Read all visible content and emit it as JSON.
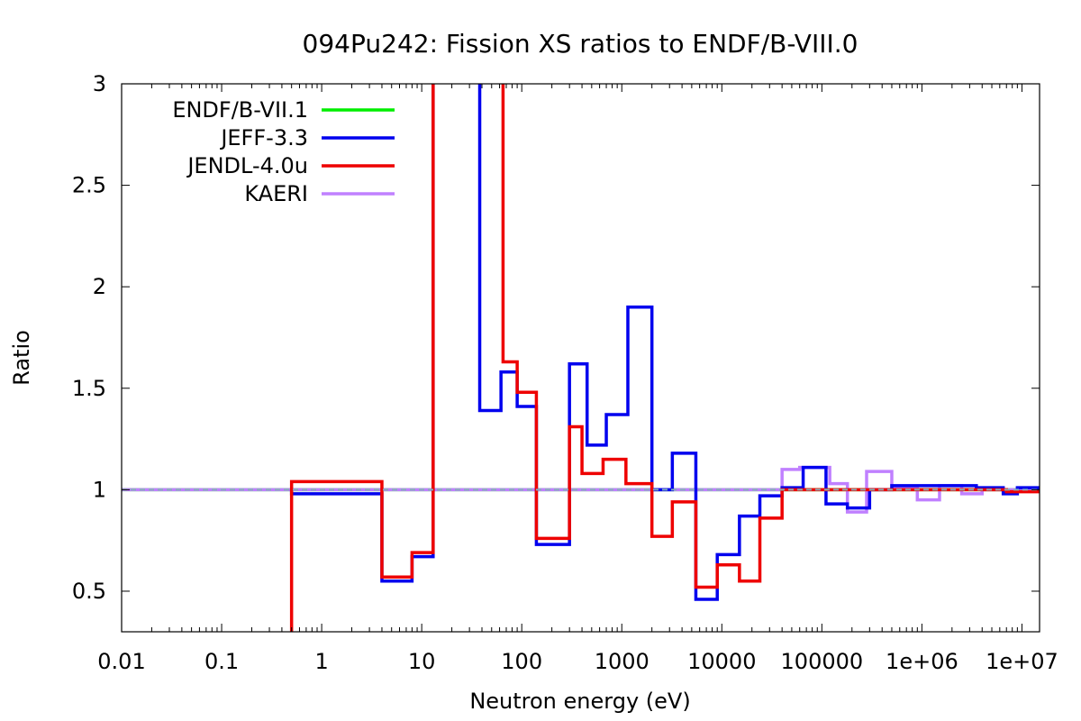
{
  "chart_data": {
    "type": "line",
    "title": "094Pu242: Fission XS ratios to ENDF/B-VIII.0",
    "xlabel": "Neutron energy (eV)",
    "ylabel": "Ratio",
    "x_scale": "log",
    "xlim": [
      0.01,
      15000000
    ],
    "ylim": [
      0.3,
      3.0
    ],
    "grid": false,
    "legend_position": "top-left",
    "x_ticks": [
      {
        "value": 0.01,
        "label": "0.01"
      },
      {
        "value": 0.1,
        "label": "0.1"
      },
      {
        "value": 1,
        "label": "1"
      },
      {
        "value": 10,
        "label": "10"
      },
      {
        "value": 100,
        "label": "100"
      },
      {
        "value": 1000,
        "label": "1000"
      },
      {
        "value": 10000,
        "label": "10000"
      },
      {
        "value": 100000,
        "label": "100000"
      },
      {
        "value": 1000000,
        "label": "1e+06"
      },
      {
        "value": 10000000,
        "label": "1e+07"
      }
    ],
    "y_ticks": [
      {
        "value": 0.5,
        "label": "0.5"
      },
      {
        "value": 1.0,
        "label": "1"
      },
      {
        "value": 1.5,
        "label": "1.5"
      },
      {
        "value": 2.0,
        "label": "2"
      },
      {
        "value": 2.5,
        "label": "2.5"
      },
      {
        "value": 3.0,
        "label": "3"
      }
    ],
    "series": [
      {
        "name": "ENDF/B-VII.1",
        "color": "#00ee00",
        "points": [
          [
            0.01,
            1.0
          ],
          [
            15000000,
            1.0
          ]
        ]
      },
      {
        "name": "KAERI",
        "color": "#c080ff",
        "points": [
          [
            0.01,
            1.0
          ],
          [
            40000,
            1.0
          ],
          [
            40000,
            1.1
          ],
          [
            60000,
            1.1
          ],
          [
            60000,
            1.11
          ],
          [
            120000,
            1.11
          ],
          [
            120000,
            1.03
          ],
          [
            180000,
            1.03
          ],
          [
            180000,
            0.89
          ],
          [
            280000,
            0.89
          ],
          [
            280000,
            1.09
          ],
          [
            500000,
            1.09
          ],
          [
            500000,
            1.01
          ],
          [
            900000,
            1.01
          ],
          [
            900000,
            0.95
          ],
          [
            1500000,
            0.95
          ],
          [
            1500000,
            1.02
          ],
          [
            2500000,
            1.02
          ],
          [
            2500000,
            0.98
          ],
          [
            4000000,
            0.98
          ],
          [
            4000000,
            1.0
          ],
          [
            15000000,
            1.0
          ]
        ]
      },
      {
        "name": "JEFF-3.3",
        "color": "#0000ee",
        "points": [
          [
            0.5,
            1.0
          ],
          [
            0.5,
            0.98
          ],
          [
            4,
            0.98
          ],
          [
            4,
            0.55
          ],
          [
            8,
            0.55
          ],
          [
            8,
            0.67
          ],
          [
            13,
            0.67
          ],
          [
            13,
            3.5
          ],
          [
            38,
            3.5
          ],
          [
            38,
            1.39
          ],
          [
            62,
            1.39
          ],
          [
            62,
            1.58
          ],
          [
            90,
            1.58
          ],
          [
            90,
            1.41
          ],
          [
            140,
            1.41
          ],
          [
            140,
            0.73
          ],
          [
            300,
            0.73
          ],
          [
            300,
            1.62
          ],
          [
            450,
            1.62
          ],
          [
            450,
            1.22
          ],
          [
            700,
            1.22
          ],
          [
            700,
            1.37
          ],
          [
            1150,
            1.37
          ],
          [
            1150,
            1.9
          ],
          [
            2000,
            1.9
          ],
          [
            2000,
            1.0
          ],
          [
            3200,
            1.0
          ],
          [
            3200,
            1.18
          ],
          [
            5500,
            1.18
          ],
          [
            5500,
            0.46
          ],
          [
            9000,
            0.46
          ],
          [
            9000,
            0.68
          ],
          [
            15000,
            0.68
          ],
          [
            15000,
            0.87
          ],
          [
            24000,
            0.87
          ],
          [
            24000,
            0.97
          ],
          [
            40000,
            0.97
          ],
          [
            40000,
            1.01
          ],
          [
            65000,
            1.01
          ],
          [
            65000,
            1.11
          ],
          [
            110000,
            1.11
          ],
          [
            110000,
            0.93
          ],
          [
            180000,
            0.93
          ],
          [
            180000,
            0.91
          ],
          [
            300000,
            0.91
          ],
          [
            300000,
            1.0
          ],
          [
            500000,
            1.0
          ],
          [
            500000,
            1.02
          ],
          [
            3500000,
            1.02
          ],
          [
            3500000,
            1.01
          ],
          [
            6500000,
            1.01
          ],
          [
            6500000,
            0.98
          ],
          [
            9000000,
            0.98
          ],
          [
            9000000,
            1.01
          ],
          [
            15000000,
            1.01
          ]
        ]
      },
      {
        "name": "JENDL-4.0u",
        "color": "#ee0000",
        "points": [
          [
            0.5,
            0.3
          ],
          [
            0.5,
            1.04
          ],
          [
            4,
            1.04
          ],
          [
            4,
            0.57
          ],
          [
            8,
            0.57
          ],
          [
            8,
            0.69
          ],
          [
            13,
            0.69
          ],
          [
            13,
            3.5
          ],
          [
            65,
            3.5
          ],
          [
            65,
            1.63
          ],
          [
            90,
            1.63
          ],
          [
            90,
            1.48
          ],
          [
            140,
            1.48
          ],
          [
            140,
            0.76
          ],
          [
            300,
            0.76
          ],
          [
            300,
            1.31
          ],
          [
            400,
            1.31
          ],
          [
            400,
            1.08
          ],
          [
            650,
            1.08
          ],
          [
            650,
            1.15
          ],
          [
            1100,
            1.15
          ],
          [
            1100,
            1.03
          ],
          [
            2000,
            1.03
          ],
          [
            2000,
            0.77
          ],
          [
            3200,
            0.77
          ],
          [
            3200,
            0.94
          ],
          [
            5500,
            0.94
          ],
          [
            5500,
            0.52
          ],
          [
            9000,
            0.52
          ],
          [
            9000,
            0.63
          ],
          [
            15000,
            0.63
          ],
          [
            15000,
            0.55
          ],
          [
            24000,
            0.55
          ],
          [
            24000,
            0.86
          ],
          [
            40000,
            0.86
          ],
          [
            40000,
            1.0
          ],
          [
            7000000,
            1.0
          ],
          [
            7000000,
            0.99
          ],
          [
            15000000,
            0.99
          ]
        ]
      },
      {
        "name": "",
        "color": "#87b0b8",
        "dashed": true,
        "points": [
          [
            0.01,
            1.0
          ],
          [
            15000000,
            1.0
          ]
        ]
      }
    ],
    "legend": [
      {
        "name": "ENDF/B-VII.1",
        "color": "#00ee00"
      },
      {
        "name": "JEFF-3.3",
        "color": "#0000ee"
      },
      {
        "name": "JENDL-4.0u",
        "color": "#ee0000"
      },
      {
        "name": "KAERI",
        "color": "#c080ff"
      }
    ]
  }
}
